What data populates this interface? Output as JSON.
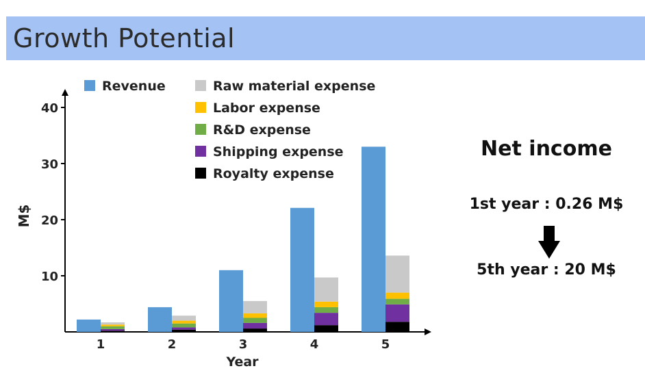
{
  "page": {
    "title": "Growth Potential",
    "net_income": {
      "title": "Net income",
      "first_year": "1st year : 0.26 M$",
      "fifth_year": "5th year : 20 M$",
      "arrow_icon": "arrow-down-icon"
    }
  },
  "colors": {
    "title_band": "#a4c2f4",
    "revenue": "#5b9bd5",
    "raw_material": "#c9c9c9",
    "labor": "#ffc000",
    "rd": "#70ad47",
    "shipping": "#7030a0",
    "royalty": "#000000"
  },
  "chart_data": {
    "type": "bar",
    "xlabel": "Year",
    "ylabel": "M$",
    "ylim": [
      0,
      40
    ],
    "yticks": [
      10,
      20,
      30,
      40
    ],
    "categories": [
      "1",
      "2",
      "3",
      "4",
      "5"
    ],
    "legend_position": "top",
    "grid": false,
    "series": [
      {
        "name": "Revenue",
        "color": "#5b9bd5",
        "stack": "revenue",
        "values": [
          2.2,
          4.4,
          11.0,
          22.1,
          33.0
        ]
      },
      {
        "name": "Royalty expense",
        "color": "#000000",
        "stack": "expenses",
        "values": [
          0.2,
          0.4,
          0.6,
          1.2,
          1.8
        ]
      },
      {
        "name": "Shipping expense",
        "color": "#7030a0",
        "stack": "expenses",
        "values": [
          0.3,
          0.4,
          1.0,
          2.2,
          3.1
        ]
      },
      {
        "name": "R&D expense",
        "color": "#70ad47",
        "stack": "expenses",
        "values": [
          0.5,
          0.7,
          0.9,
          1.0,
          1.0
        ]
      },
      {
        "name": "Labor expense",
        "color": "#ffc000",
        "stack": "expenses",
        "values": [
          0.3,
          0.5,
          0.8,
          1.0,
          1.1
        ]
      },
      {
        "name": "Raw material expense",
        "color": "#c9c9c9",
        "stack": "expenses",
        "values": [
          0.4,
          0.9,
          2.2,
          4.3,
          6.6
        ]
      }
    ],
    "legend": [
      {
        "label": "Revenue",
        "color": "#5b9bd5"
      },
      {
        "label": "Raw material expense",
        "color": "#c9c9c9"
      },
      {
        "label": "Labor expense",
        "color": "#ffc000"
      },
      {
        "label": "R&D expense",
        "color": "#70ad47"
      },
      {
        "label": "Shipping expense",
        "color": "#7030a0"
      },
      {
        "label": "Royalty expense",
        "color": "#000000"
      }
    ]
  }
}
